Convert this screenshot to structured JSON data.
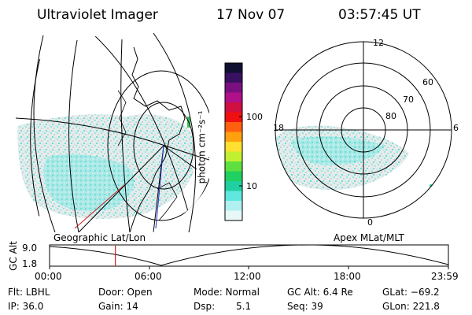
{
  "header": {
    "instrument": "Ultraviolet Imager",
    "date": "17 Nov 07",
    "time": "03:57:45 UT"
  },
  "colorbar": {
    "label": "photon cm⁻²s⁻¹",
    "ticks": [
      "100",
      "10"
    ],
    "colors": [
      "#101030",
      "#3a1060",
      "#7a1080",
      "#b0108a",
      "#d01040",
      "#f01010",
      "#ff6010",
      "#ffa010",
      "#ffe030",
      "#c0f030",
      "#60e040",
      "#20d060",
      "#20d0a0",
      "#60e8e0",
      "#b0f0f0",
      "#e8f8f8"
    ]
  },
  "left_map": {
    "label": "Geographic Lat/Lon"
  },
  "right_map": {
    "label": "Apex MLat/MLT",
    "mlt_labels": {
      "top": "12",
      "left": "18",
      "right": "6",
      "bottom": "0"
    },
    "lat_labels": [
      "60",
      "70",
      "80"
    ]
  },
  "timeline": {
    "ylabel": "GC Alt",
    "ticks_y": [
      "9.0",
      "1.8"
    ],
    "ticks_x": [
      "00:00",
      "06:00",
      "12:00",
      "18:00",
      "23:59"
    ],
    "current_fraction": 0.165
  },
  "status": {
    "flt": "Flt: LBHL",
    "ip": "IP: 36.0",
    "door": "Door: Open",
    "gain": "Gain: 14",
    "mode": "Mode: Normal",
    "dsp_label": "Dsp:",
    "dsp_value": "5.1",
    "gcalt": "GC Alt: 6.4 Re",
    "seq": "Seq: 39",
    "glat": "GLat: −69.2",
    "glon": "GLon: 221.8"
  }
}
